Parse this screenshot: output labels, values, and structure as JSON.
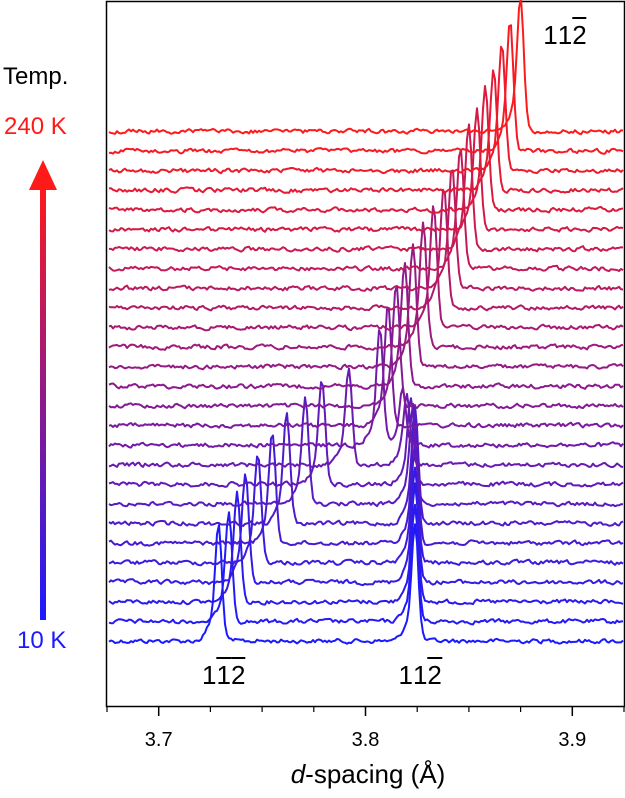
{
  "chart_data": {
    "type": "line",
    "xlabel": "d-spacing (Å)",
    "xlabel_italic": "d",
    "xlabel_rest": "-spacing (Å)",
    "xlim": [
      3.675,
      3.925
    ],
    "xticks": [
      3.7,
      3.8,
      3.9
    ],
    "xtick_labels": [
      "3.7",
      "3.8",
      "3.9"
    ],
    "y_axis_visible": false,
    "grid": false,
    "temperature_scale": {
      "label": "Temp.",
      "top_label": "240 K",
      "bottom_label": "10 K",
      "top_color": "#ff1a1a",
      "bottom_color": "#1a1aff",
      "arrow_direction": "up"
    },
    "peak_labels": [
      {
        "text": "11̅2̅",
        "hkl": "1 -1 -2",
        "d": 3.73,
        "position": "bottom"
      },
      {
        "text": "112̅",
        "hkl": "1 1 -2",
        "d": 3.825,
        "position": "bottom"
      },
      {
        "text": "112̅",
        "hkl": "1 1 -2",
        "d": 3.875,
        "position": "top"
      }
    ],
    "series_note": "27 stacked diffraction profiles, bottom trace 10 K (blue) to top trace 240 K (red)",
    "series_count": 27,
    "series_colors": {
      "start": "#1a1aff",
      "end": "#ff1a1a"
    },
    "peak_positions": {
      "description": "peak centers in d-spacing (Å) per trace, bottom to top",
      "peak_a": [
        3.729,
        3.734,
        3.738,
        3.742,
        3.748,
        3.755,
        3.762,
        3.771,
        3.779,
        3.792,
        3.807,
        3.811,
        3.815,
        3.819,
        3.823,
        3.828,
        3.833,
        3.838,
        3.842,
        3.846,
        3.85,
        3.854,
        3.858,
        3.862,
        3.866,
        3.87,
        3.875
      ],
      "peak_b": [
        3.824,
        3.824,
        3.824,
        3.824,
        3.824,
        3.824,
        3.824,
        3.823,
        3.822,
        3.82,
        3.818,
        null,
        null,
        null,
        null,
        null,
        null,
        null,
        null,
        null,
        null,
        null,
        null,
        null,
        null,
        null,
        null
      ]
    },
    "peak_heights_relative": {
      "peak_a": [
        1.0,
        0.95,
        0.95,
        0.95,
        0.95,
        0.95,
        0.95,
        0.9,
        0.9,
        0.85,
        1.0,
        1.05,
        1.05,
        1.05,
        1.05,
        1.05,
        1.05,
        1.05,
        1.05,
        1.05,
        1.05,
        1.05,
        1.05,
        1.05,
        1.1,
        1.1,
        1.15
      ],
      "peak_b": [
        1.0,
        1.0,
        1.0,
        1.0,
        1.0,
        1.0,
        1.0,
        0.85,
        0.75,
        0.6,
        0.5,
        null,
        null,
        null,
        null,
        null,
        null,
        null,
        null,
        null,
        null,
        null,
        null,
        null,
        null,
        null,
        null
      ]
    }
  }
}
